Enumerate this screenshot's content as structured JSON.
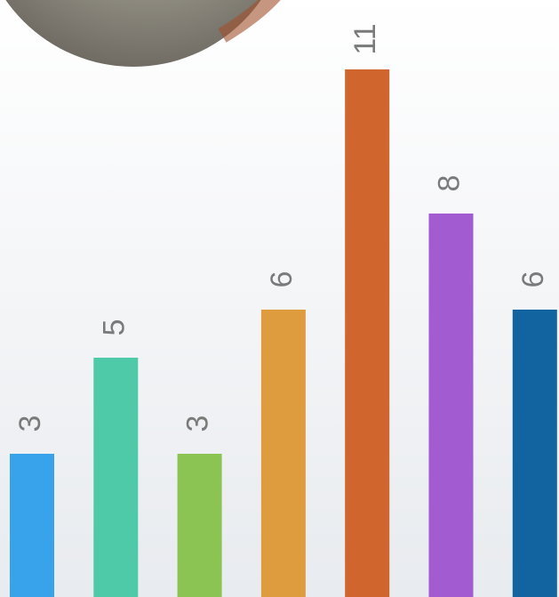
{
  "chart_data": {
    "type": "bar",
    "values": [
      3,
      5,
      3,
      6,
      11,
      8,
      6
    ],
    "colors": [
      "#38a2ea",
      "#4ecaa9",
      "#8cc453",
      "#de9c3e",
      "#d0652d",
      "#a25bd0",
      "#11649f"
    ]
  }
}
